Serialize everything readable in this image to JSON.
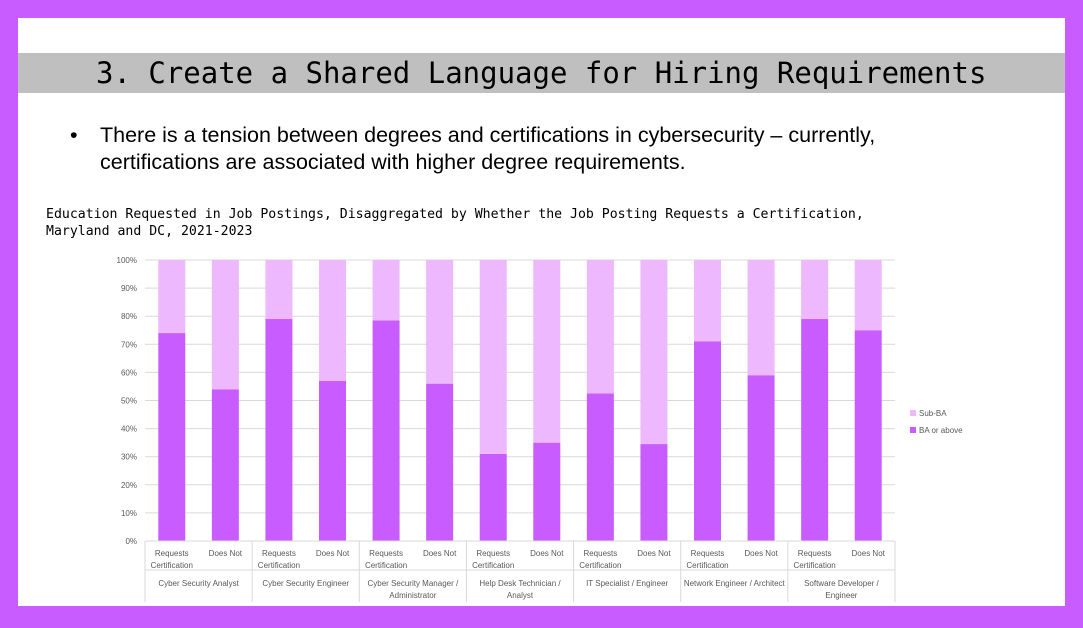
{
  "title": "3. Create a Shared Language for Hiring Requirements",
  "bullet": {
    "marker": "•",
    "text": "There is a tension between degrees and certifications in cybersecurity – currently, certifications are associated with higher degree requirements."
  },
  "chart_caption_line1": "Education Requested in Job Postings, Disaggregated by Whether the Job Posting Requests a Certification,",
  "chart_caption_line2": "Maryland and DC, 2021-2023",
  "colors": {
    "frame": "#c95cff",
    "ba_or_above": "#c95cff",
    "sub_ba": "#edb8fd",
    "title_band": "#bfbfbf"
  },
  "chart_data": {
    "type": "bar",
    "stacked": true,
    "y_tick_labels": [
      "0%",
      "10%",
      "20%",
      "30%",
      "40%",
      "50%",
      "60%",
      "70%",
      "80%",
      "90%",
      "100%"
    ],
    "ylim": [
      0,
      100
    ],
    "grid": true,
    "legend_position": "right",
    "groups": [
      {
        "label_lines": [
          "Cyber Security Analyst"
        ]
      },
      {
        "label_lines": [
          "Cyber Security Engineer"
        ]
      },
      {
        "label_lines": [
          "Cyber Security Manager /",
          "Administrator"
        ]
      },
      {
        "label_lines": [
          "Help Desk Technician /",
          "Analyst"
        ]
      },
      {
        "label_lines": [
          "IT Specialist / Engineer"
        ]
      },
      {
        "label_lines": [
          "Network Engineer / Architect"
        ]
      },
      {
        "label_lines": [
          "Software Developer /",
          "Engineer"
        ]
      }
    ],
    "sub_categories": [
      {
        "label_lines": [
          "Requests",
          "Certification"
        ]
      },
      {
        "label_lines": [
          "Does Not"
        ]
      }
    ],
    "series": [
      {
        "name": "BA or above",
        "color": "#c95cff",
        "values": [
          74,
          54,
          79,
          57,
          78.5,
          56,
          31,
          35,
          52.5,
          34.5,
          71,
          59,
          79,
          75
        ]
      },
      {
        "name": "Sub-BA",
        "color": "#edb8fd",
        "values": [
          26,
          46,
          21,
          43,
          21.5,
          44,
          69,
          65,
          47.5,
          65.5,
          29,
          41,
          21,
          25
        ]
      }
    ],
    "legend_order": [
      "Sub-BA",
      "BA or above"
    ]
  }
}
